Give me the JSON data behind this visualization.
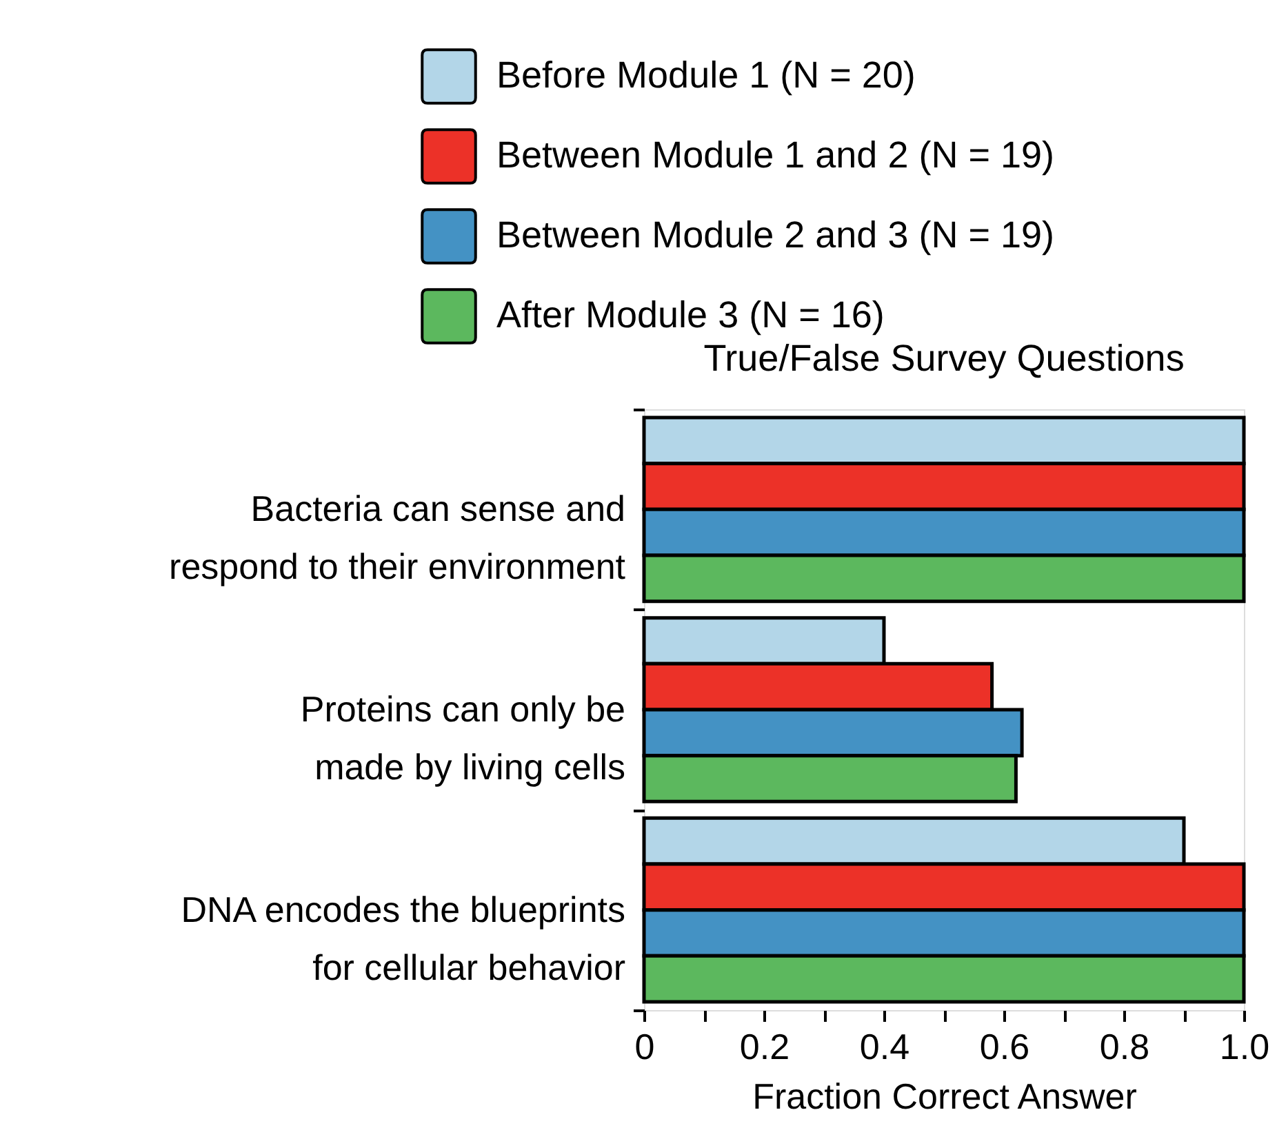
{
  "chart_data": {
    "type": "bar",
    "orientation": "horizontal",
    "title": "True/False Survey Questions",
    "xlabel": "Fraction Correct Answer",
    "categories": [
      "Bacteria can sense and\nrespond to their environment",
      "Proteins can only be\nmade by living cells",
      "DNA encodes the blueprints\nfor cellular behavior"
    ],
    "series": [
      {
        "name": "Before Module 1 (N = 20)",
        "color": "#b3d6e8",
        "values": [
          1.0,
          0.4,
          0.9
        ]
      },
      {
        "name": "Between Module 1 and 2 (N = 19)",
        "color": "#ec3128",
        "values": [
          1.0,
          0.58,
          1.0
        ]
      },
      {
        "name": "Between Module 2 and 3 (N = 19)",
        "color": "#4492c4",
        "values": [
          1.0,
          0.63,
          1.0
        ]
      },
      {
        "name": "After Module 3 (N = 16)",
        "color": "#5cb85e",
        "values": [
          1.0,
          0.62,
          1.0
        ]
      }
    ],
    "xlim": [
      0,
      1.0
    ],
    "xticks": [
      0,
      {
        "value": 0.1,
        "label": null
      },
      0.2,
      {
        "value": 0.3,
        "label": null
      },
      0.4,
      {
        "value": 0.5,
        "label": null
      },
      0.6,
      {
        "value": 0.7,
        "label": null
      },
      0.8,
      {
        "value": 0.9,
        "label": null
      },
      {
        "value": 1.0,
        "label": "1.0"
      }
    ],
    "legend": "top",
    "grid": false
  }
}
